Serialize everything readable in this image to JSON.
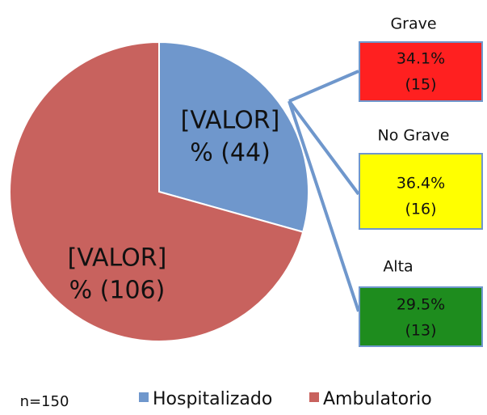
{
  "chart_data": {
    "type": "pie",
    "categories": [
      "Hospitalizado",
      "Ambulatorio"
    ],
    "values": [
      44,
      106
    ],
    "value_labels": [
      [
        "[VALOR]",
        "% (44)"
      ],
      [
        "[VALOR]",
        "% (106)"
      ]
    ],
    "colors": [
      "#6f97cc",
      "#c8625e"
    ],
    "note": "n=150",
    "legend": "bottom",
    "breakdown": {
      "categories": [
        "Grave",
        "No Grave",
        "Alta"
      ],
      "values": [
        34.1,
        36.4,
        29.5
      ],
      "value_labels": [
        "34.1%",
        "36.4%",
        "29.5%"
      ],
      "counts": [
        15,
        16,
        13
      ],
      "count_labels": [
        "(15)",
        "(16)",
        "(13)"
      ],
      "colors": [
        "#ff2020",
        "#ffff00",
        "#1e8c1e"
      ]
    }
  }
}
